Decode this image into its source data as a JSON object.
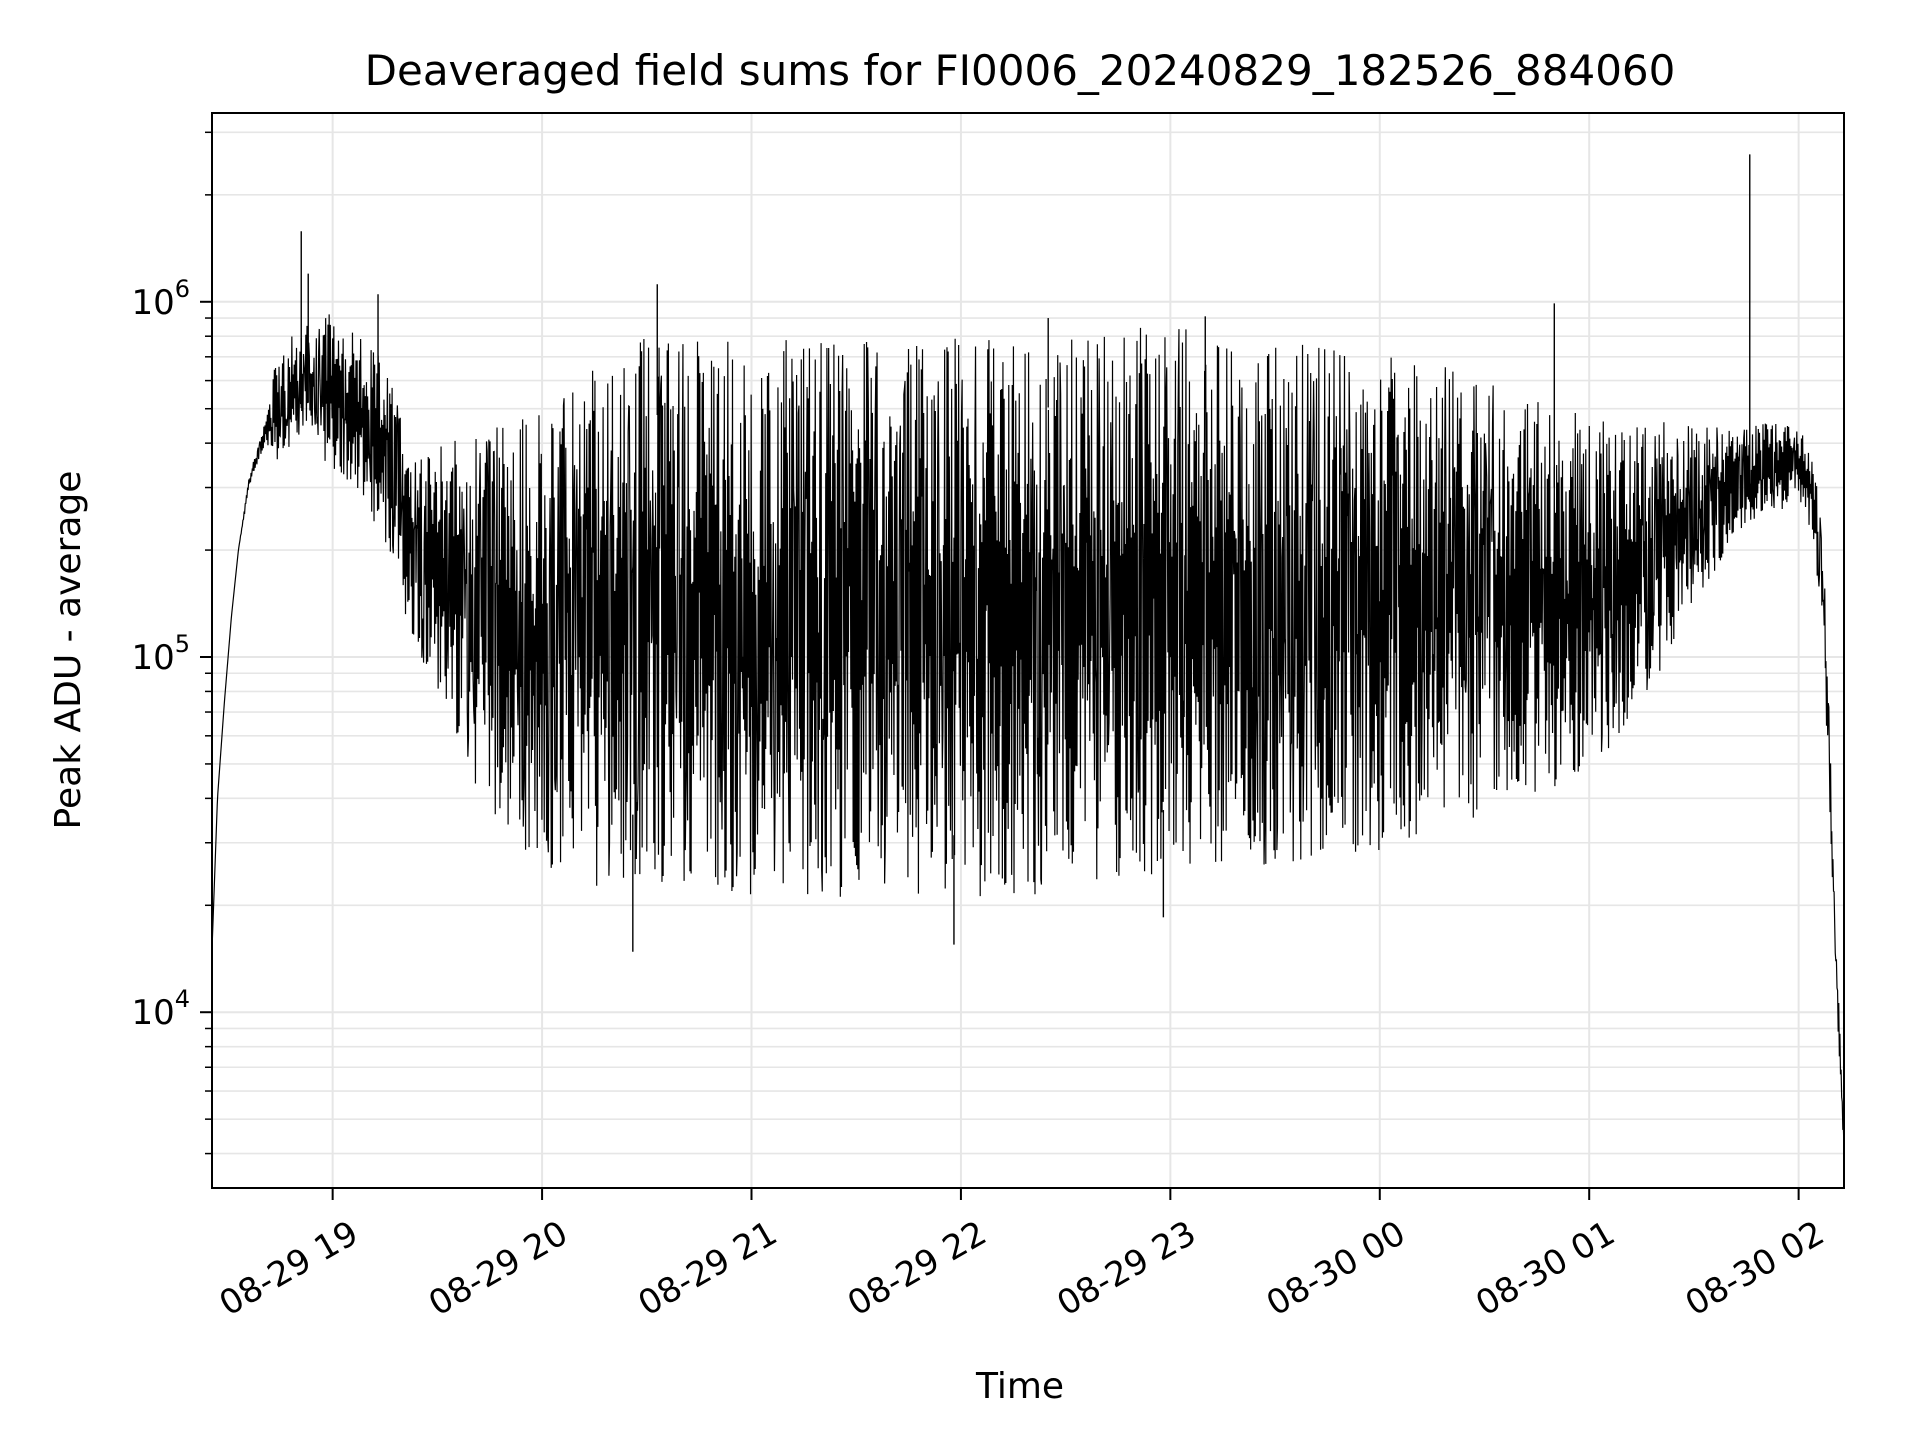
{
  "chart_data": {
    "type": "line",
    "title": "Deaveraged field sums for FI0006_20240829_182526_884060",
    "xlabel": "Time",
    "ylabel": "Peak ADU - average",
    "yscale": "log",
    "ylim": [
      3200,
      3400000
    ],
    "xlim": [
      "2024-08-29 18:25:26",
      "2024-08-30 02:13:00"
    ],
    "grid": true,
    "line_color": "#000000",
    "grid_color": "#e6e6e6",
    "x_ticks": [
      {
        "value": "2024-08-29 19:00",
        "label": "08-29 19"
      },
      {
        "value": "2024-08-29 20:00",
        "label": "08-29 20"
      },
      {
        "value": "2024-08-29 21:00",
        "label": "08-29 21"
      },
      {
        "value": "2024-08-29 22:00",
        "label": "08-29 22"
      },
      {
        "value": "2024-08-29 23:00",
        "label": "08-29 23"
      },
      {
        "value": "2024-08-30 00:00",
        "label": "08-30 00"
      },
      {
        "value": "2024-08-30 01:00",
        "label": "08-30 01"
      },
      {
        "value": "2024-08-30 02:00",
        "label": "08-30 02"
      }
    ],
    "y_ticks": [
      {
        "value": 10000,
        "base": "10",
        "exp": "4"
      },
      {
        "value": 100000,
        "base": "10",
        "exp": "5"
      },
      {
        "value": 1000000,
        "base": "10",
        "exp": "6"
      }
    ],
    "series": [
      {
        "x": [
          "2024-08-29 18:25:26",
          "2024-08-29 18:27",
          "2024-08-29 18:29",
          "2024-08-29 18:31",
          "2024-08-29 18:33",
          "2024-08-29 18:36",
          "2024-08-29 18:40",
          "2024-08-29 18:44",
          "2024-08-29 18:48",
          "2024-08-29 18:52",
          "2024-08-29 18:55",
          "2024-08-29 18:58",
          "2024-08-29 19:02",
          "2024-08-29 19:06",
          "2024-08-29 19:10",
          "2024-08-29 19:14",
          "2024-08-29 19:18",
          "2024-08-29 19:22",
          "2024-08-29 19:26",
          "2024-08-29 19:30",
          "2024-08-29 19:35",
          "2024-08-29 19:40",
          "2024-08-29 19:45",
          "2024-08-29 19:50",
          "2024-08-29 19:55",
          "2024-08-29 20:00",
          "2024-08-29 20:05",
          "2024-08-29 20:10",
          "2024-08-29 20:15",
          "2024-08-29 20:20",
          "2024-08-29 20:25",
          "2024-08-29 20:30",
          "2024-08-29 20:40",
          "2024-08-29 20:50",
          "2024-08-29 21:00",
          "2024-08-29 21:15",
          "2024-08-29 21:30",
          "2024-08-29 21:45",
          "2024-08-29 22:00",
          "2024-08-29 22:15",
          "2024-08-29 22:30",
          "2024-08-29 22:45",
          "2024-08-29 23:00",
          "2024-08-29 23:15",
          "2024-08-29 23:30",
          "2024-08-29 23:45",
          "2024-08-30 00:00",
          "2024-08-30 00:10",
          "2024-08-30 00:20",
          "2024-08-30 00:30",
          "2024-08-30 00:40",
          "2024-08-30 00:50",
          "2024-08-30 01:00",
          "2024-08-30 01:10",
          "2024-08-30 01:20",
          "2024-08-30 01:30",
          "2024-08-30 01:40",
          "2024-08-30 01:50",
          "2024-08-30 02:00",
          "2024-08-30 02:04",
          "2024-08-30 02:07",
          "2024-08-30 02:09",
          "2024-08-30 02:11",
          "2024-08-30 02:13"
        ],
        "low": [
          15000,
          40000,
          75000,
          130000,
          200000,
          300000,
          380000,
          350000,
          380000,
          400000,
          380000,
          350000,
          330000,
          300000,
          250000,
          200000,
          160000,
          120000,
          95000,
          80000,
          60000,
          45000,
          38000,
          32000,
          28000,
          26000,
          24000,
          23000,
          22000,
          23000,
          24000,
          24000,
          22000,
          21000,
          21000,
          21000,
          21000,
          21000,
          21000,
          21000,
          22000,
          23000,
          25000,
          25000,
          26000,
          27000,
          28000,
          30000,
          33000,
          36000,
          40000,
          43000,
          48000,
          60000,
          90000,
          140000,
          200000,
          250000,
          270000,
          220000,
          120000,
          30000,
          10000,
          4000
        ],
        "high": [
          15000,
          40000,
          75000,
          130000,
          200000,
          320000,
          440000,
          700000,
          800000,
          850000,
          900000,
          950000,
          900000,
          850000,
          800000,
          700000,
          550000,
          420000,
          380000,
          400000,
          420000,
          450000,
          450000,
          480000,
          500000,
          520000,
          550000,
          600000,
          650000,
          700000,
          750000,
          800000,
          800000,
          800000,
          800000,
          800000,
          800000,
          800000,
          800000,
          820000,
          850000,
          850000,
          850000,
          820000,
          800000,
          780000,
          760000,
          720000,
          650000,
          600000,
          550000,
          500000,
          480000,
          470000,
          460000,
          450000,
          450000,
          460000,
          450000,
          380000,
          220000,
          60000,
          15000,
          4500
        ],
        "spikes": [
          {
            "x": "2024-08-29 18:51",
            "y": 1580000
          },
          {
            "x": "2024-08-29 18:53",
            "y": 1200000
          },
          {
            "x": "2024-08-29 19:13",
            "y": 1050000
          },
          {
            "x": "2024-08-29 20:33",
            "y": 1120000
          },
          {
            "x": "2024-08-29 22:25",
            "y": 900000
          },
          {
            "x": "2024-08-29 23:10",
            "y": 910000
          },
          {
            "x": "2024-08-30 00:50",
            "y": 990000
          },
          {
            "x": "2024-08-30 01:46",
            "y": 2600000
          }
        ],
        "dips": [
          {
            "x": "2024-08-29 20:26",
            "y": 14800
          },
          {
            "x": "2024-08-29 21:58",
            "y": 15500
          },
          {
            "x": "2024-08-29 22:58",
            "y": 18500
          }
        ]
      }
    ]
  }
}
